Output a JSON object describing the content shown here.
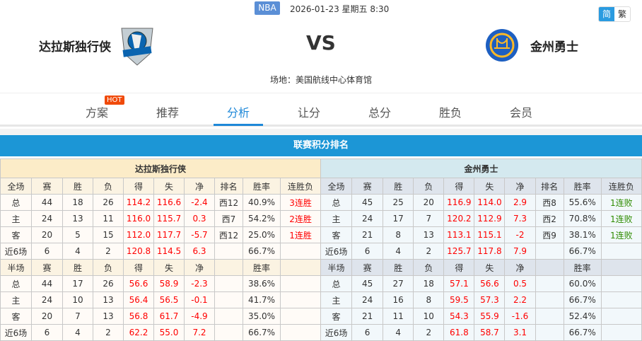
{
  "header": {
    "league": "NBA",
    "datetime": "2026-01-23 星期五 8:30",
    "lang_simplified": "简",
    "lang_traditional": "繁",
    "home_team": "达拉斯独行侠",
    "away_team": "金州勇士",
    "vs": "VS",
    "venue": "场地：美国航线中心体育馆"
  },
  "nav": {
    "tabs": [
      "方案",
      "推荐",
      "分析",
      "让分",
      "总分",
      "胜负",
      "会员"
    ],
    "active": "分析",
    "hot_badge": "HOT"
  },
  "section_title": "联赛积分排名",
  "colors": {
    "accent": "#1c96d6",
    "red": "#ff0000",
    "green": "#2e8b00"
  },
  "tables": [
    {
      "team": "达拉斯独行侠",
      "full_header": [
        "全场",
        "赛",
        "胜",
        "负",
        "得",
        "失",
        "净",
        "排名",
        "胜率",
        "连胜负"
      ],
      "full_rows": [
        [
          "总",
          "44",
          "18",
          "26",
          "114.2",
          "116.6",
          "-2.4",
          "西12",
          "40.9%",
          "3连胜"
        ],
        [
          "主",
          "24",
          "13",
          "11",
          "116.0",
          "115.7",
          "0.3",
          "西7",
          "54.2%",
          "2连胜"
        ],
        [
          "客",
          "20",
          "5",
          "15",
          "112.0",
          "117.7",
          "-5.7",
          "西12",
          "25.0%",
          "1连胜"
        ],
        [
          "近6场",
          "6",
          "4",
          "2",
          "120.8",
          "114.5",
          "6.3",
          "",
          "66.7%",
          ""
        ]
      ],
      "half_header": [
        "半场",
        "赛",
        "胜",
        "负",
        "得",
        "失",
        "净",
        "",
        "胜率",
        ""
      ],
      "half_rows": [
        [
          "总",
          "44",
          "17",
          "26",
          "56.6",
          "58.9",
          "-2.3",
          "",
          "38.6%",
          ""
        ],
        [
          "主",
          "24",
          "10",
          "13",
          "56.4",
          "56.5",
          "-0.1",
          "",
          "41.7%",
          ""
        ],
        [
          "客",
          "20",
          "7",
          "13",
          "56.8",
          "61.7",
          "-4.9",
          "",
          "35.0%",
          ""
        ],
        [
          "近6场",
          "6",
          "4",
          "2",
          "62.2",
          "55.0",
          "7.2",
          "",
          "66.7%",
          ""
        ]
      ]
    },
    {
      "team": "金州勇士",
      "full_header": [
        "全场",
        "赛",
        "胜",
        "负",
        "得",
        "失",
        "净",
        "排名",
        "胜率",
        "连胜负"
      ],
      "full_rows": [
        [
          "总",
          "45",
          "25",
          "20",
          "116.9",
          "114.0",
          "2.9",
          "西8",
          "55.6%",
          "1连败"
        ],
        [
          "主",
          "24",
          "17",
          "7",
          "120.2",
          "112.9",
          "7.3",
          "西2",
          "70.8%",
          "1连败"
        ],
        [
          "客",
          "21",
          "8",
          "13",
          "113.1",
          "115.1",
          "-2",
          "西9",
          "38.1%",
          "1连败"
        ],
        [
          "近6场",
          "6",
          "4",
          "2",
          "125.7",
          "117.8",
          "7.9",
          "",
          "66.7%",
          ""
        ]
      ],
      "half_header": [
        "半场",
        "赛",
        "胜",
        "负",
        "得",
        "失",
        "净",
        "",
        "胜率",
        ""
      ],
      "half_rows": [
        [
          "总",
          "45",
          "27",
          "18",
          "57.1",
          "56.6",
          "0.5",
          "",
          "60.0%",
          ""
        ],
        [
          "主",
          "24",
          "16",
          "8",
          "59.5",
          "57.3",
          "2.2",
          "",
          "66.7%",
          ""
        ],
        [
          "客",
          "21",
          "11",
          "10",
          "54.3",
          "55.9",
          "-1.6",
          "",
          "52.4%",
          ""
        ],
        [
          "近6场",
          "6",
          "4",
          "2",
          "61.8",
          "58.7",
          "3.1",
          "",
          "66.7%",
          ""
        ]
      ]
    }
  ]
}
